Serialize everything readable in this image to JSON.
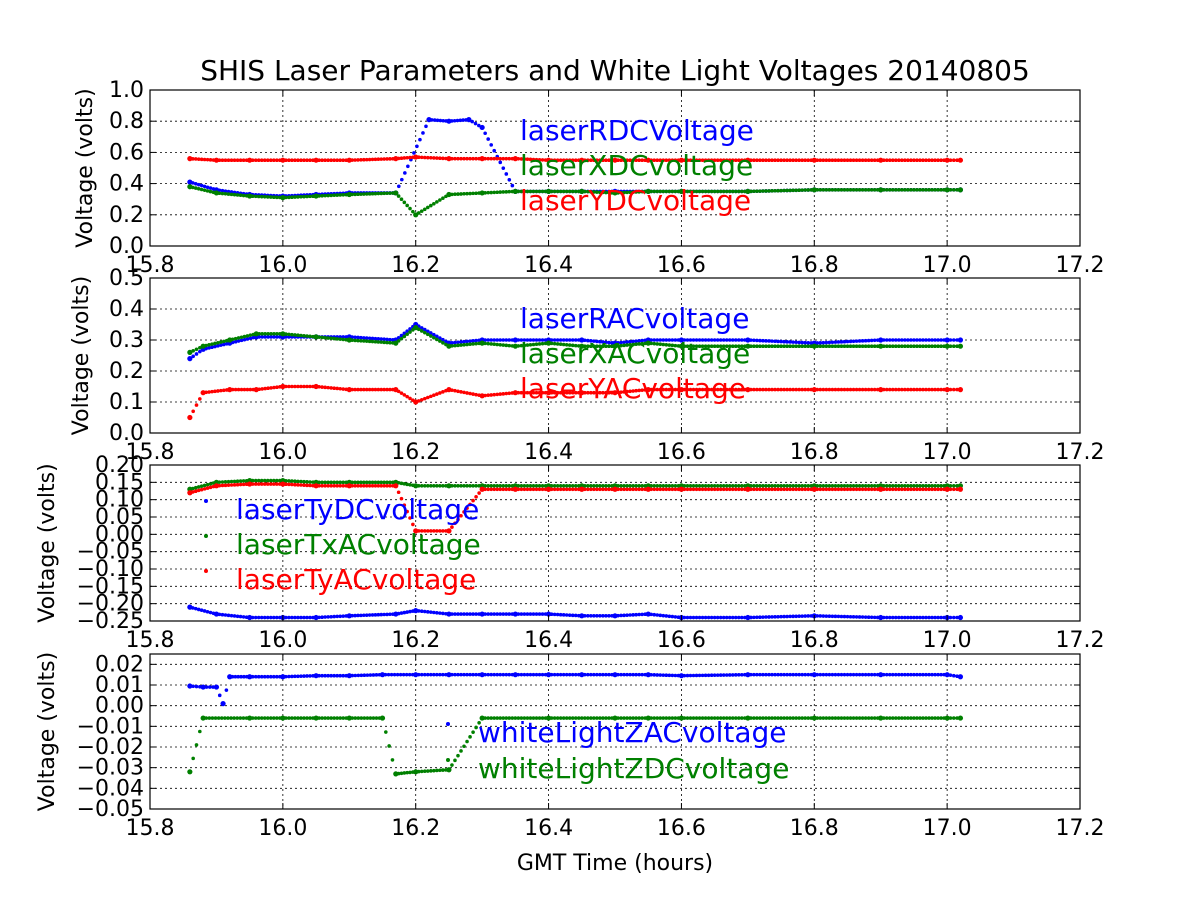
{
  "title": "SHIS Laser Parameters and White Light Voltages 20140805",
  "xlabel": "GMT Time (hours)",
  "colors": {
    "blue": "#0000ff",
    "green": "#008000",
    "red": "#ff0000"
  },
  "chart_data": [
    {
      "type": "scatter",
      "ylabel": "Voltage (volts)",
      "xlim": [
        15.8,
        17.2
      ],
      "ylim": [
        0.0,
        1.0
      ],
      "xticks": [
        "15.8",
        "16.0",
        "16.2",
        "16.4",
        "16.6",
        "16.8",
        "17.0",
        "17.2"
      ],
      "yticks": [
        "0.0",
        "0.2",
        "0.4",
        "0.6",
        "0.8",
        "1.0"
      ],
      "grid": true,
      "legend_position": "center",
      "series": [
        {
          "name": "laserRDCVoltage",
          "color": "#0000ff",
          "x": [
            15.86,
            15.9,
            15.95,
            16.0,
            16.05,
            16.1,
            16.17,
            16.22,
            16.25,
            16.28,
            16.3,
            16.35,
            16.4,
            16.45,
            16.5,
            16.55,
            16.6,
            16.7,
            16.8,
            16.9,
            17.0,
            17.02
          ],
          "y": [
            0.41,
            0.36,
            0.33,
            0.32,
            0.33,
            0.34,
            0.34,
            0.81,
            0.8,
            0.81,
            0.76,
            0.35,
            0.35,
            0.35,
            0.35,
            0.35,
            0.35,
            0.35,
            0.36,
            0.36,
            0.36,
            0.36
          ]
        },
        {
          "name": "laserXDCvoltage",
          "color": "#008000",
          "x": [
            15.86,
            15.9,
            15.95,
            16.0,
            16.05,
            16.1,
            16.17,
            16.2,
            16.25,
            16.3,
            16.35,
            16.4,
            16.45,
            16.5,
            16.55,
            16.6,
            16.7,
            16.8,
            16.9,
            17.0,
            17.02
          ],
          "y": [
            0.38,
            0.34,
            0.32,
            0.31,
            0.32,
            0.33,
            0.34,
            0.2,
            0.33,
            0.34,
            0.35,
            0.35,
            0.35,
            0.34,
            0.35,
            0.35,
            0.35,
            0.36,
            0.36,
            0.36,
            0.36
          ]
        },
        {
          "name": "laserYDCvoltage",
          "color": "#ff0000",
          "x": [
            15.86,
            15.9,
            15.95,
            16.0,
            16.05,
            16.1,
            16.17,
            16.2,
            16.25,
            16.3,
            16.35,
            16.4,
            16.45,
            16.5,
            16.55,
            16.6,
            16.7,
            16.8,
            16.9,
            17.0,
            17.02
          ],
          "y": [
            0.56,
            0.55,
            0.55,
            0.55,
            0.55,
            0.55,
            0.56,
            0.57,
            0.56,
            0.56,
            0.56,
            0.55,
            0.55,
            0.55,
            0.55,
            0.55,
            0.55,
            0.55,
            0.55,
            0.55,
            0.55
          ]
        }
      ]
    },
    {
      "type": "scatter",
      "ylabel": "Voltage (volts)",
      "xlim": [
        15.8,
        17.2
      ],
      "ylim": [
        0.0,
        0.5
      ],
      "xticks": [
        "15.8",
        "16.0",
        "16.2",
        "16.4",
        "16.6",
        "16.8",
        "17.0",
        "17.2"
      ],
      "yticks": [
        "0.0",
        "0.1",
        "0.2",
        "0.3",
        "0.4",
        "0.5"
      ],
      "grid": true,
      "legend_position": "center",
      "series": [
        {
          "name": "laserRACvoltage",
          "color": "#0000ff",
          "x": [
            15.86,
            15.88,
            15.92,
            15.96,
            16.0,
            16.05,
            16.1,
            16.17,
            16.2,
            16.25,
            16.3,
            16.35,
            16.4,
            16.45,
            16.5,
            16.55,
            16.6,
            16.7,
            16.8,
            16.9,
            17.0,
            17.02
          ],
          "y": [
            0.24,
            0.27,
            0.29,
            0.31,
            0.31,
            0.31,
            0.31,
            0.3,
            0.35,
            0.29,
            0.3,
            0.3,
            0.3,
            0.3,
            0.29,
            0.3,
            0.3,
            0.3,
            0.29,
            0.3,
            0.3,
            0.3
          ]
        },
        {
          "name": "laserXACvoltage",
          "color": "#008000",
          "x": [
            15.86,
            15.88,
            15.92,
            15.96,
            16.0,
            16.05,
            16.1,
            16.17,
            16.2,
            16.25,
            16.3,
            16.35,
            16.4,
            16.45,
            16.5,
            16.55,
            16.6,
            16.7,
            16.8,
            16.9,
            17.0,
            17.02
          ],
          "y": [
            0.26,
            0.28,
            0.3,
            0.32,
            0.32,
            0.31,
            0.3,
            0.29,
            0.34,
            0.28,
            0.29,
            0.28,
            0.29,
            0.28,
            0.28,
            0.29,
            0.28,
            0.28,
            0.28,
            0.28,
            0.28,
            0.28
          ]
        },
        {
          "name": "laserYACvoltage",
          "color": "#ff0000",
          "x": [
            15.86,
            15.88,
            15.92,
            15.96,
            16.0,
            16.05,
            16.1,
            16.17,
            16.2,
            16.25,
            16.3,
            16.35,
            16.4,
            16.45,
            16.5,
            16.55,
            16.6,
            16.7,
            16.8,
            16.9,
            17.0,
            17.02
          ],
          "y": [
            0.05,
            0.13,
            0.14,
            0.14,
            0.15,
            0.15,
            0.14,
            0.14,
            0.1,
            0.14,
            0.12,
            0.13,
            0.13,
            0.13,
            0.13,
            0.14,
            0.14,
            0.14,
            0.14,
            0.14,
            0.14,
            0.14
          ]
        }
      ]
    },
    {
      "type": "scatter",
      "ylabel": "Voltage (volts)",
      "xlim": [
        15.8,
        17.2
      ],
      "ylim": [
        -0.25,
        0.2
      ],
      "xticks": [
        "15.8",
        "16.0",
        "16.2",
        "16.4",
        "16.6",
        "16.8",
        "17.0",
        "17.2"
      ],
      "yticks": [
        "−0.25",
        "−0.20",
        "−0.15",
        "−0.10",
        "−0.05",
        "0.00",
        "0.05",
        "0.10",
        "0.15",
        "0.20"
      ],
      "grid": true,
      "legend_position": "center-left",
      "series": [
        {
          "name": "laserTyDCvoltage",
          "color": "#0000ff",
          "x": [
            15.86,
            15.9,
            15.95,
            16.0,
            16.05,
            16.1,
            16.17,
            16.2,
            16.25,
            16.3,
            16.35,
            16.4,
            16.45,
            16.5,
            16.55,
            16.6,
            16.7,
            16.8,
            16.9,
            17.0,
            17.02
          ],
          "y": [
            -0.21,
            -0.23,
            -0.24,
            -0.24,
            -0.24,
            -0.235,
            -0.23,
            -0.22,
            -0.23,
            -0.23,
            -0.23,
            -0.23,
            -0.235,
            -0.235,
            -0.23,
            -0.24,
            -0.24,
            -0.235,
            -0.24,
            -0.24,
            -0.24
          ]
        },
        {
          "name": "laserTxACvoltage",
          "color": "#008000",
          "x": [
            15.86,
            15.9,
            15.95,
            16.0,
            16.05,
            16.1,
            16.17,
            16.2,
            16.25,
            16.3,
            16.35,
            16.4,
            16.45,
            16.5,
            16.55,
            16.6,
            16.7,
            16.8,
            16.9,
            17.0,
            17.02
          ],
          "y": [
            0.13,
            0.15,
            0.155,
            0.155,
            0.15,
            0.15,
            0.15,
            0.14,
            0.14,
            0.14,
            0.14,
            0.14,
            0.14,
            0.14,
            0.14,
            0.14,
            0.14,
            0.14,
            0.14,
            0.14,
            0.14
          ]
        },
        {
          "name": "laserTyACvoltage",
          "color": "#ff0000",
          "x": [
            15.86,
            15.9,
            15.95,
            16.0,
            16.05,
            16.1,
            16.17,
            16.2,
            16.25,
            16.3,
            16.35,
            16.4,
            16.45,
            16.5,
            16.55,
            16.6,
            16.7,
            16.8,
            16.9,
            17.0,
            17.02
          ],
          "y": [
            0.12,
            0.14,
            0.145,
            0.145,
            0.14,
            0.14,
            0.14,
            0.01,
            0.01,
            0.13,
            0.13,
            0.13,
            0.13,
            0.13,
            0.13,
            0.13,
            0.13,
            0.13,
            0.13,
            0.13,
            0.13
          ]
        }
      ]
    },
    {
      "type": "scatter",
      "ylabel": "Voltage (volts)",
      "xlim": [
        15.8,
        17.2
      ],
      "ylim": [
        -0.05,
        0.025
      ],
      "xticks": [
        "15.8",
        "16.0",
        "16.2",
        "16.4",
        "16.6",
        "16.8",
        "17.0",
        "17.2"
      ],
      "yticks": [
        "−0.05",
        "−0.04",
        "−0.03",
        "−0.02",
        "−0.01",
        "0.00",
        "0.01",
        "0.02"
      ],
      "grid": true,
      "legend_position": "lower-center",
      "series": [
        {
          "name": "whiteLightZACvoltage",
          "color": "#0000ff",
          "x": [
            15.86,
            15.88,
            15.9,
            15.91,
            15.92,
            15.95,
            16.0,
            16.05,
            16.1,
            16.15,
            16.2,
            16.25,
            16.3,
            16.35,
            16.4,
            16.45,
            16.5,
            16.55,
            16.6,
            16.7,
            16.8,
            16.9,
            17.0,
            17.02
          ],
          "y": [
            0.0095,
            0.009,
            0.009,
            0.001,
            0.014,
            0.014,
            0.014,
            0.0145,
            0.0145,
            0.015,
            0.015,
            0.015,
            0.015,
            0.015,
            0.015,
            0.015,
            0.015,
            0.015,
            0.0145,
            0.015,
            0.015,
            0.015,
            0.015,
            0.014
          ]
        },
        {
          "name": "whiteLightZDCvoltage",
          "color": "#008000",
          "x": [
            15.86,
            15.88,
            15.95,
            16.0,
            16.05,
            16.1,
            16.15,
            16.17,
            16.2,
            16.25,
            16.3,
            16.4,
            16.5,
            16.55,
            16.6,
            16.7,
            16.8,
            16.9,
            17.0,
            17.02
          ],
          "y": [
            -0.032,
            -0.006,
            -0.006,
            -0.006,
            -0.006,
            -0.006,
            -0.006,
            -0.033,
            -0.032,
            -0.031,
            -0.006,
            -0.006,
            -0.006,
            -0.006,
            -0.006,
            -0.006,
            -0.006,
            -0.006,
            -0.006,
            -0.006
          ]
        }
      ]
    }
  ]
}
